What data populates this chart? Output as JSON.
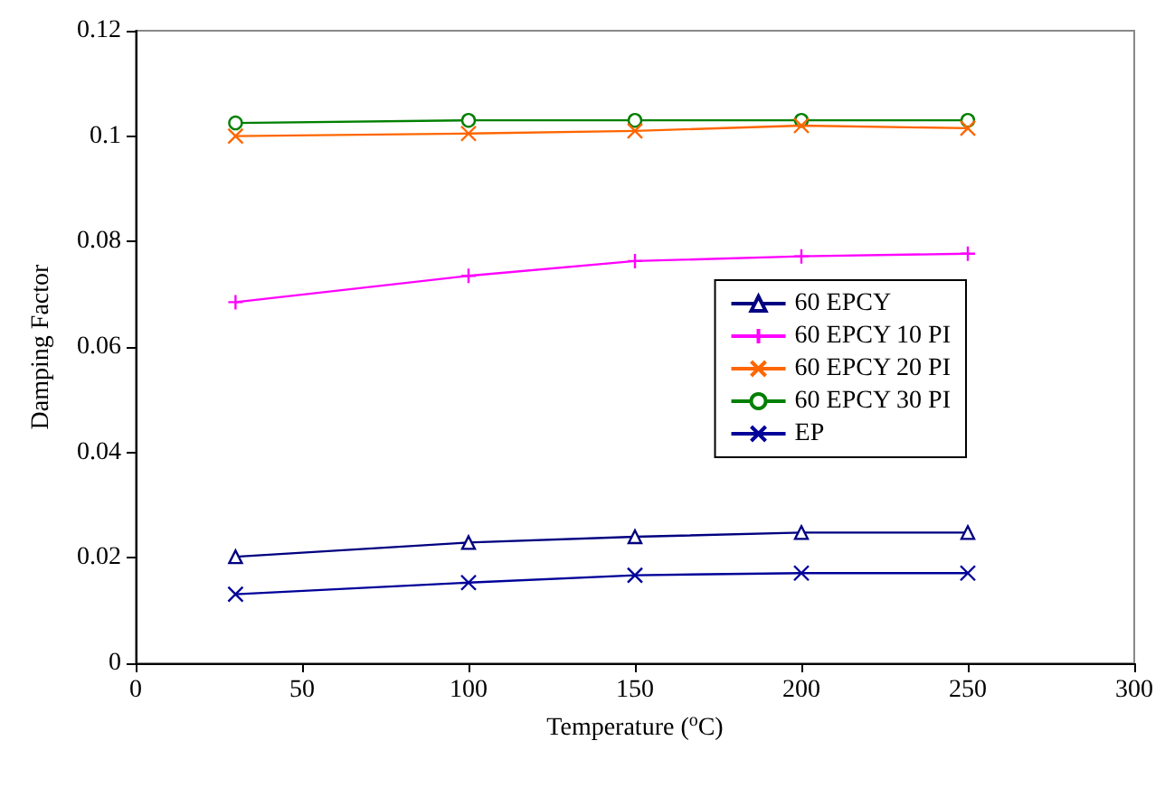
{
  "chart_data": {
    "type": "line",
    "xlabel": "Temperature ($^{o}$C)",
    "ylabel": "Damping Factor",
    "x": [
      30,
      100,
      150,
      200,
      250
    ],
    "series": [
      {
        "name": "60 EPCY",
        "color": "#000080",
        "marker": "triangle",
        "values": [
          0.0202,
          0.0229,
          0.024,
          0.0248,
          0.0248
        ]
      },
      {
        "name": "60 EPCY 10 PI",
        "color": "#ff00ff",
        "marker": "plus",
        "values": [
          0.0685,
          0.0735,
          0.0763,
          0.0772,
          0.0777
        ]
      },
      {
        "name": "60 EPCY 20 PI",
        "color": "#ff6600",
        "marker": "x",
        "values": [
          0.1,
          0.1005,
          0.101,
          0.102,
          0.1015
        ]
      },
      {
        "name": "60 EPCY 30 PI",
        "color": "#008000",
        "marker": "circle",
        "values": [
          0.1025,
          0.103,
          0.103,
          0.103,
          0.103
        ]
      },
      {
        "name": "EP",
        "color": "#000099",
        "marker": "x",
        "values": [
          0.0131,
          0.0153,
          0.0167,
          0.0171,
          0.0171
        ]
      }
    ],
    "xlim": [
      0,
      300
    ],
    "xticks": [
      0,
      50,
      100,
      150,
      200,
      250,
      300
    ],
    "ylim": [
      0,
      0.12
    ],
    "yticks": [
      0,
      0.02,
      0.04,
      0.06,
      0.08,
      0.1,
      0.12
    ],
    "grid": false,
    "legend": "right"
  }
}
